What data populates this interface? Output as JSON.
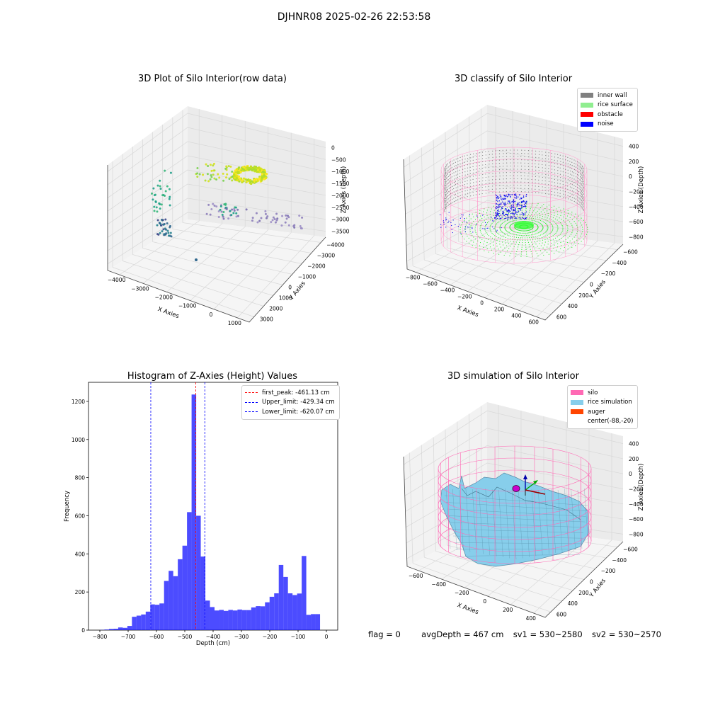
{
  "figure": {
    "suptitle": "DJHNR08 2025-02-26 22:53:58"
  },
  "panels": {
    "raw": {
      "title": "3D Plot of Silo Interior(row data)",
      "xlabel": "X Axies",
      "ylabel": "Y Axies",
      "zlabel": "Z Axies (Depth)",
      "xticks": [
        "−4000",
        "−3000",
        "−2000",
        "−1000",
        "0",
        "1000"
      ],
      "yticks": [
        "−4000",
        "−3000",
        "−2000",
        "−1000",
        "0",
        "1000",
        "2000",
        "3000"
      ],
      "zticks": [
        "0",
        "−500",
        "−1000",
        "−1500",
        "−2000",
        "−2500",
        "−3000",
        "−3500"
      ]
    },
    "classify": {
      "title": "3D classify of Silo Interior",
      "xlabel": "X Axies",
      "ylabel": "Y Axies",
      "zlabel": "Z Axies (Depth)",
      "xticks": [
        "−800",
        "−600",
        "−400",
        "−200",
        "0",
        "200",
        "400",
        "600"
      ],
      "yticks": [
        "−600",
        "−400",
        "−200",
        "0",
        "200",
        "400",
        "600"
      ],
      "zticks": [
        "400",
        "200",
        "0",
        "−200",
        "−400",
        "−600",
        "−800"
      ],
      "legend": [
        {
          "label": "inner wall",
          "color": "#808080"
        },
        {
          "label": "rice surface",
          "color": "#90ee90"
        },
        {
          "label": "obstacle",
          "color": "#ff0000"
        },
        {
          "label": "noise",
          "color": "#0000ff"
        }
      ]
    },
    "simulation": {
      "title": "3D simulation of Silo Interior",
      "xlabel": "X Axies",
      "ylabel": "Y Axies",
      "zlabel": "Z Axies (Depth)",
      "xticks": [
        "−600",
        "−400",
        "−200",
        "0",
        "200",
        "400"
      ],
      "yticks": [
        "−600",
        "−400",
        "−200",
        "0",
        "200",
        "400",
        "600"
      ],
      "zticks": [
        "400",
        "200",
        "0",
        "−200",
        "−400",
        "−600",
        "−800"
      ],
      "legend": [
        {
          "label": "silo",
          "color": "#ff69b4"
        },
        {
          "label": "rice simulation",
          "color": "#87ceeb"
        },
        {
          "label": "auger",
          "color": "#ff4500"
        },
        {
          "label": "center(-88,-20)",
          "color": ""
        }
      ]
    }
  },
  "chart_data": [
    {
      "type": "bar",
      "title": "Histogram of Z-Axies (Height) Values",
      "xlabel": "Depth (cm)",
      "ylabel": "Frequency",
      "xlim": [
        -840,
        40
      ],
      "ylim": [
        0,
        1300
      ],
      "xticks": [
        -800,
        -700,
        -600,
        -500,
        -400,
        -300,
        -200,
        -100,
        0
      ],
      "yticks": [
        0,
        200,
        400,
        600,
        800,
        1000,
        1200
      ],
      "xtick_labels": [
        "−800",
        "−700",
        "−600",
        "−500",
        "−400",
        "−300",
        "−200",
        "−100",
        "0"
      ],
      "ytick_labels": [
        "0",
        "200",
        "400",
        "600",
        "800",
        "1000",
        "1200"
      ],
      "color": "#0000ff",
      "bin_width": 16.2,
      "bin_start": -800,
      "values": [
        1,
        3,
        6,
        7,
        14,
        12,
        22,
        70,
        76,
        82,
        97,
        135,
        133,
        140,
        258,
        311,
        283,
        372,
        443,
        619,
        1236,
        600,
        386,
        155,
        121,
        103,
        106,
        101,
        106,
        103,
        108,
        105,
        105,
        119,
        126,
        125,
        146,
        175,
        193,
        342,
        279,
        193,
        184,
        192,
        389,
        80,
        84,
        84
      ],
      "vlines": [
        {
          "label": "first_peak: -461.13 cm",
          "x": -461.13,
          "color": "#ff0000"
        },
        {
          "label": "Upper_limit: -429.34 cm",
          "x": -429.34,
          "color": "#0000ff"
        },
        {
          "label": "Lower_limit: -620.07 cm",
          "x": -620.07,
          "color": "#0000ff"
        }
      ]
    }
  ],
  "status": {
    "flag": "flag = 0",
    "avg": "avgDepth = 467 cm",
    "sv1": "sv1 = 530~2580",
    "sv2": "sv2 = 530~2570"
  }
}
